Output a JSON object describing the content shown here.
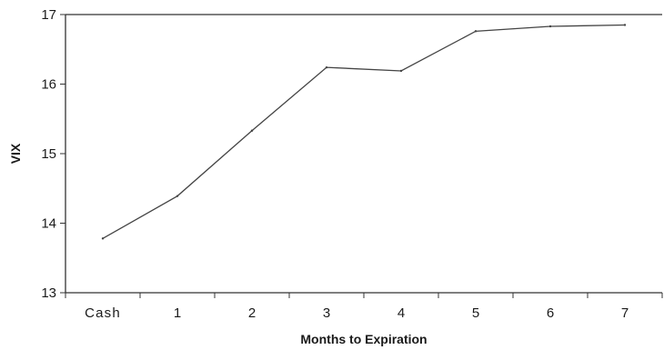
{
  "chart_data": {
    "type": "line",
    "title": "",
    "xlabel": "Months to Expiration",
    "ylabel": "VIX",
    "categories": [
      "Cash",
      "1",
      "2",
      "3",
      "4",
      "5",
      "6",
      "7"
    ],
    "series": [
      {
        "values": [
          13.78,
          14.39,
          15.33,
          16.24,
          16.19,
          16.76,
          16.83,
          16.85
        ]
      }
    ],
    "ylim": [
      13,
      17
    ],
    "yticks": [
      13,
      14,
      15,
      16,
      17
    ],
    "grid": false,
    "legend": "none",
    "line_color": "#444444"
  }
}
